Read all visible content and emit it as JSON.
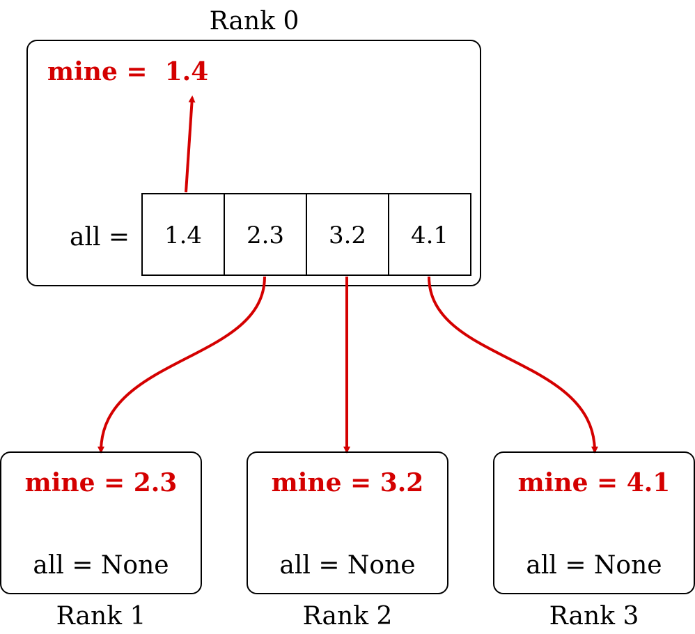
{
  "colors": {
    "accent": "#d40000",
    "stroke": "#000000"
  },
  "rank0": {
    "title": "Rank 0",
    "mine_label": "mine =  1.4",
    "all_label": "all =",
    "cells": [
      "1.4",
      "2.3",
      "3.2",
      "4.1"
    ]
  },
  "ranks": [
    {
      "title": "Rank 1",
      "mine_label": "mine = 2.3",
      "all_label": "all = None"
    },
    {
      "title": "Rank 2",
      "mine_label": "mine = 3.2",
      "all_label": "all = None"
    },
    {
      "title": "Rank 3",
      "mine_label": "mine = 4.1",
      "all_label": "all = None"
    }
  ]
}
